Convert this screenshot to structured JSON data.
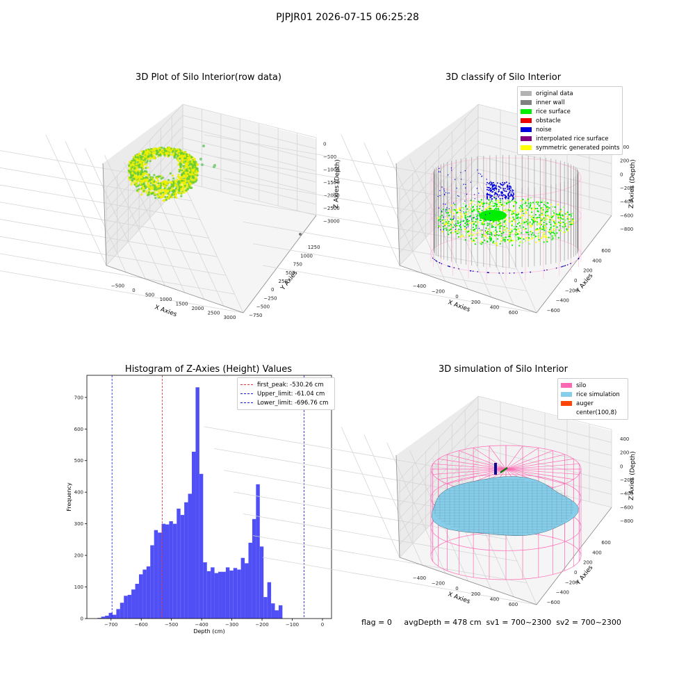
{
  "figure": {
    "suptitle": "PJPJR01 2026-07-15 06:25:28",
    "footer": "flag = 0     avgDepth = 478 cm  sv1 = 700~2300  sv2 = 700~2300"
  },
  "chart_data": [
    {
      "type": "scatter",
      "subtype": "3d",
      "title": "3D Plot of Silo Interior(row data)",
      "xlabel": "X Axies",
      "ylabel": "Y Axies",
      "zlabel": "Z Axies (Depth)",
      "x_ticks": [
        "−500",
        "0",
        "500",
        "1000",
        "1500",
        "2000",
        "2500",
        "3000"
      ],
      "y_ticks": [
        "−750",
        "−500",
        "−250",
        "0",
        "250",
        "500",
        "750",
        "1000",
        "1250"
      ],
      "z_ticks": [
        "−3000",
        "−2500",
        "−2000",
        "−1500",
        "−1000",
        "−500",
        "0"
      ],
      "colors": {
        "low": "#66cc33",
        "high": "#eeee00"
      }
    },
    {
      "type": "scatter",
      "subtype": "3d",
      "title": "3D classify of Silo Interior",
      "xlabel": "X Axies",
      "ylabel": "Y Axies",
      "zlabel": "Z Axies (Depth)",
      "x_ticks": [
        "−400",
        "−200",
        "0",
        "200",
        "400",
        "600"
      ],
      "y_ticks": [
        "−600",
        "−400",
        "−200",
        "0",
        "200",
        "400",
        "600"
      ],
      "z_ticks": [
        "−800",
        "−600",
        "−400",
        "−200",
        "0",
        "200",
        "400"
      ],
      "legend": [
        {
          "label": "original data",
          "color": "#b3b3b3"
        },
        {
          "label": "inner wall",
          "color": "#808080"
        },
        {
          "label": "rice surface",
          "color": "#00ee00"
        },
        {
          "label": "obstacle",
          "color": "#ee0000"
        },
        {
          "label": "noise",
          "color": "#0000dd"
        },
        {
          "label": "interpolated rice surface",
          "color": "#800080"
        },
        {
          "label": "symmetric generated points",
          "color": "#ffff00"
        }
      ]
    },
    {
      "type": "bar",
      "subtype": "histogram",
      "title": "Histogram of Z-Axies (Height) Values",
      "xlabel": "Depth (cm)",
      "ylabel": "Frequency",
      "xlim": [
        -780,
        30
      ],
      "ylim": [
        0,
        770
      ],
      "bin_width": 12.5,
      "bin_start": -745,
      "x_ticks": [
        -700,
        -600,
        -500,
        -400,
        -300,
        -200,
        -100,
        0
      ],
      "x_tick_labels": [
        "−700",
        "−600",
        "−500",
        "−400",
        "−300",
        "−200",
        "−100",
        "0"
      ],
      "y_ticks": [
        0,
        100,
        200,
        300,
        400,
        500,
        600,
        700
      ],
      "values": [
        2,
        6,
        9,
        18,
        12,
        30,
        50,
        72,
        75,
        92,
        110,
        140,
        155,
        165,
        232,
        280,
        272,
        300,
        298,
        308,
        300,
        348,
        328,
        368,
        395,
        528,
        732,
        458,
        178,
        150,
        162,
        144,
        148,
        148,
        162,
        152,
        160,
        155,
        192,
        175,
        240,
        315,
        425,
        228,
        68,
        115,
        48,
        26,
        42
      ],
      "bar_color": "#4f4ff5",
      "vlines": [
        {
          "label": "first_peak: -530.26 cm",
          "x": -530.26,
          "color": "#e23030"
        },
        {
          "label": "Upper_limit: -61.04 cm",
          "x": -61.04,
          "color": "#1515e0"
        },
        {
          "label": "Lower_limit: -696.76 cm",
          "x": -696.76,
          "color": "#1515e0"
        }
      ],
      "legend_position": "top-right"
    },
    {
      "type": "area",
      "subtype": "3d-surface",
      "title": "3D simulation of Silo Interior",
      "xlabel": "X Axies",
      "ylabel": "Y Axies",
      "zlabel": "Z Axies (Depth)",
      "x_ticks": [
        "−400",
        "−200",
        "0",
        "200",
        "400",
        "600"
      ],
      "y_ticks": [
        "−600",
        "−400",
        "−200",
        "0",
        "200",
        "400",
        "600"
      ],
      "z_ticks": [
        "−800",
        "−600",
        "−400",
        "−200",
        "0",
        "200",
        "400"
      ],
      "legend": [
        {
          "label": "silo",
          "color": "#ff69b4"
        },
        {
          "label": "rice simulation",
          "color": "#87ceeb"
        },
        {
          "label": "auger",
          "color": "#ff4500"
        },
        {
          "label": "center(100,8)",
          "color": ""
        }
      ]
    }
  ]
}
